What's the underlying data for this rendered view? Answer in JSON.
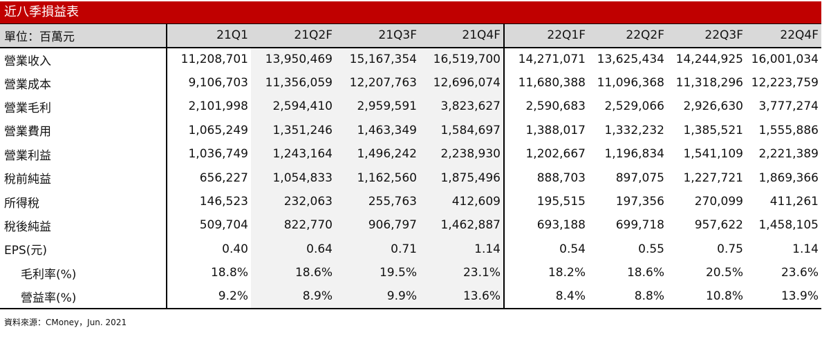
{
  "title": "近八季損益表",
  "table": {
    "unit_label": "單位：百萬元",
    "columns": [
      "21Q1",
      "21Q2F",
      "21Q3F",
      "21Q4F",
      "22Q1F",
      "22Q2F",
      "22Q3F",
      "22Q4F"
    ],
    "rows": [
      {
        "label": "營業收入",
        "values": [
          "11,208,701",
          "13,950,469",
          "15,167,354",
          "16,519,700",
          "14,271,071",
          "13,625,434",
          "14,244,925",
          "16,001,034"
        ]
      },
      {
        "label": "營業成本",
        "values": [
          "9,106,703",
          "11,356,059",
          "12,207,763",
          "12,696,074",
          "11,680,388",
          "11,096,368",
          "11,318,296",
          "12,223,759"
        ]
      },
      {
        "label": "營業毛利",
        "values": [
          "2,101,998",
          "2,594,410",
          "2,959,591",
          "3,823,627",
          "2,590,683",
          "2,529,066",
          "2,926,630",
          "3,777,274"
        ]
      },
      {
        "label": "營業費用",
        "values": [
          "1,065,249",
          "1,351,246",
          "1,463,349",
          "1,584,697",
          "1,388,017",
          "1,332,232",
          "1,385,521",
          "1,555,886"
        ]
      },
      {
        "label": "營業利益",
        "values": [
          "1,036,749",
          "1,243,164",
          "1,496,242",
          "2,238,930",
          "1,202,667",
          "1,196,834",
          "1,541,109",
          "2,221,389"
        ]
      },
      {
        "label": "稅前純益",
        "values": [
          "656,227",
          "1,054,833",
          "1,162,560",
          "1,875,496",
          "888,703",
          "897,075",
          "1,227,721",
          "1,869,366"
        ]
      },
      {
        "label": "所得稅",
        "values": [
          "146,523",
          "232,063",
          "255,763",
          "412,609",
          "195,515",
          "197,356",
          "270,099",
          "411,261"
        ]
      },
      {
        "label": "稅後純益",
        "values": [
          "509,704",
          "822,770",
          "906,797",
          "1,462,887",
          "693,188",
          "699,718",
          "957,622",
          "1,458,105"
        ]
      },
      {
        "label": "EPS(元)",
        "values": [
          "0.40",
          "0.64",
          "0.71",
          "1.14",
          "0.54",
          "0.55",
          "0.75",
          "1.14"
        ]
      },
      {
        "label": "毛利率(%)",
        "indent": true,
        "values": [
          "18.8%",
          "18.6%",
          "19.5%",
          "23.1%",
          "18.2%",
          "18.6%",
          "20.5%",
          "23.6%"
        ]
      },
      {
        "label": "營益率(%)",
        "indent": true,
        "values": [
          "9.2%",
          "8.9%",
          "9.9%",
          "13.6%",
          "8.4%",
          "8.8%",
          "10.8%",
          "13.9%"
        ]
      }
    ]
  },
  "source": "資料來源：CMoney，Jun. 2021",
  "colors": {
    "title_bg": "#c00000",
    "header_bg": "#d9d9d9",
    "shade_bg": "#f2f2f2"
  }
}
